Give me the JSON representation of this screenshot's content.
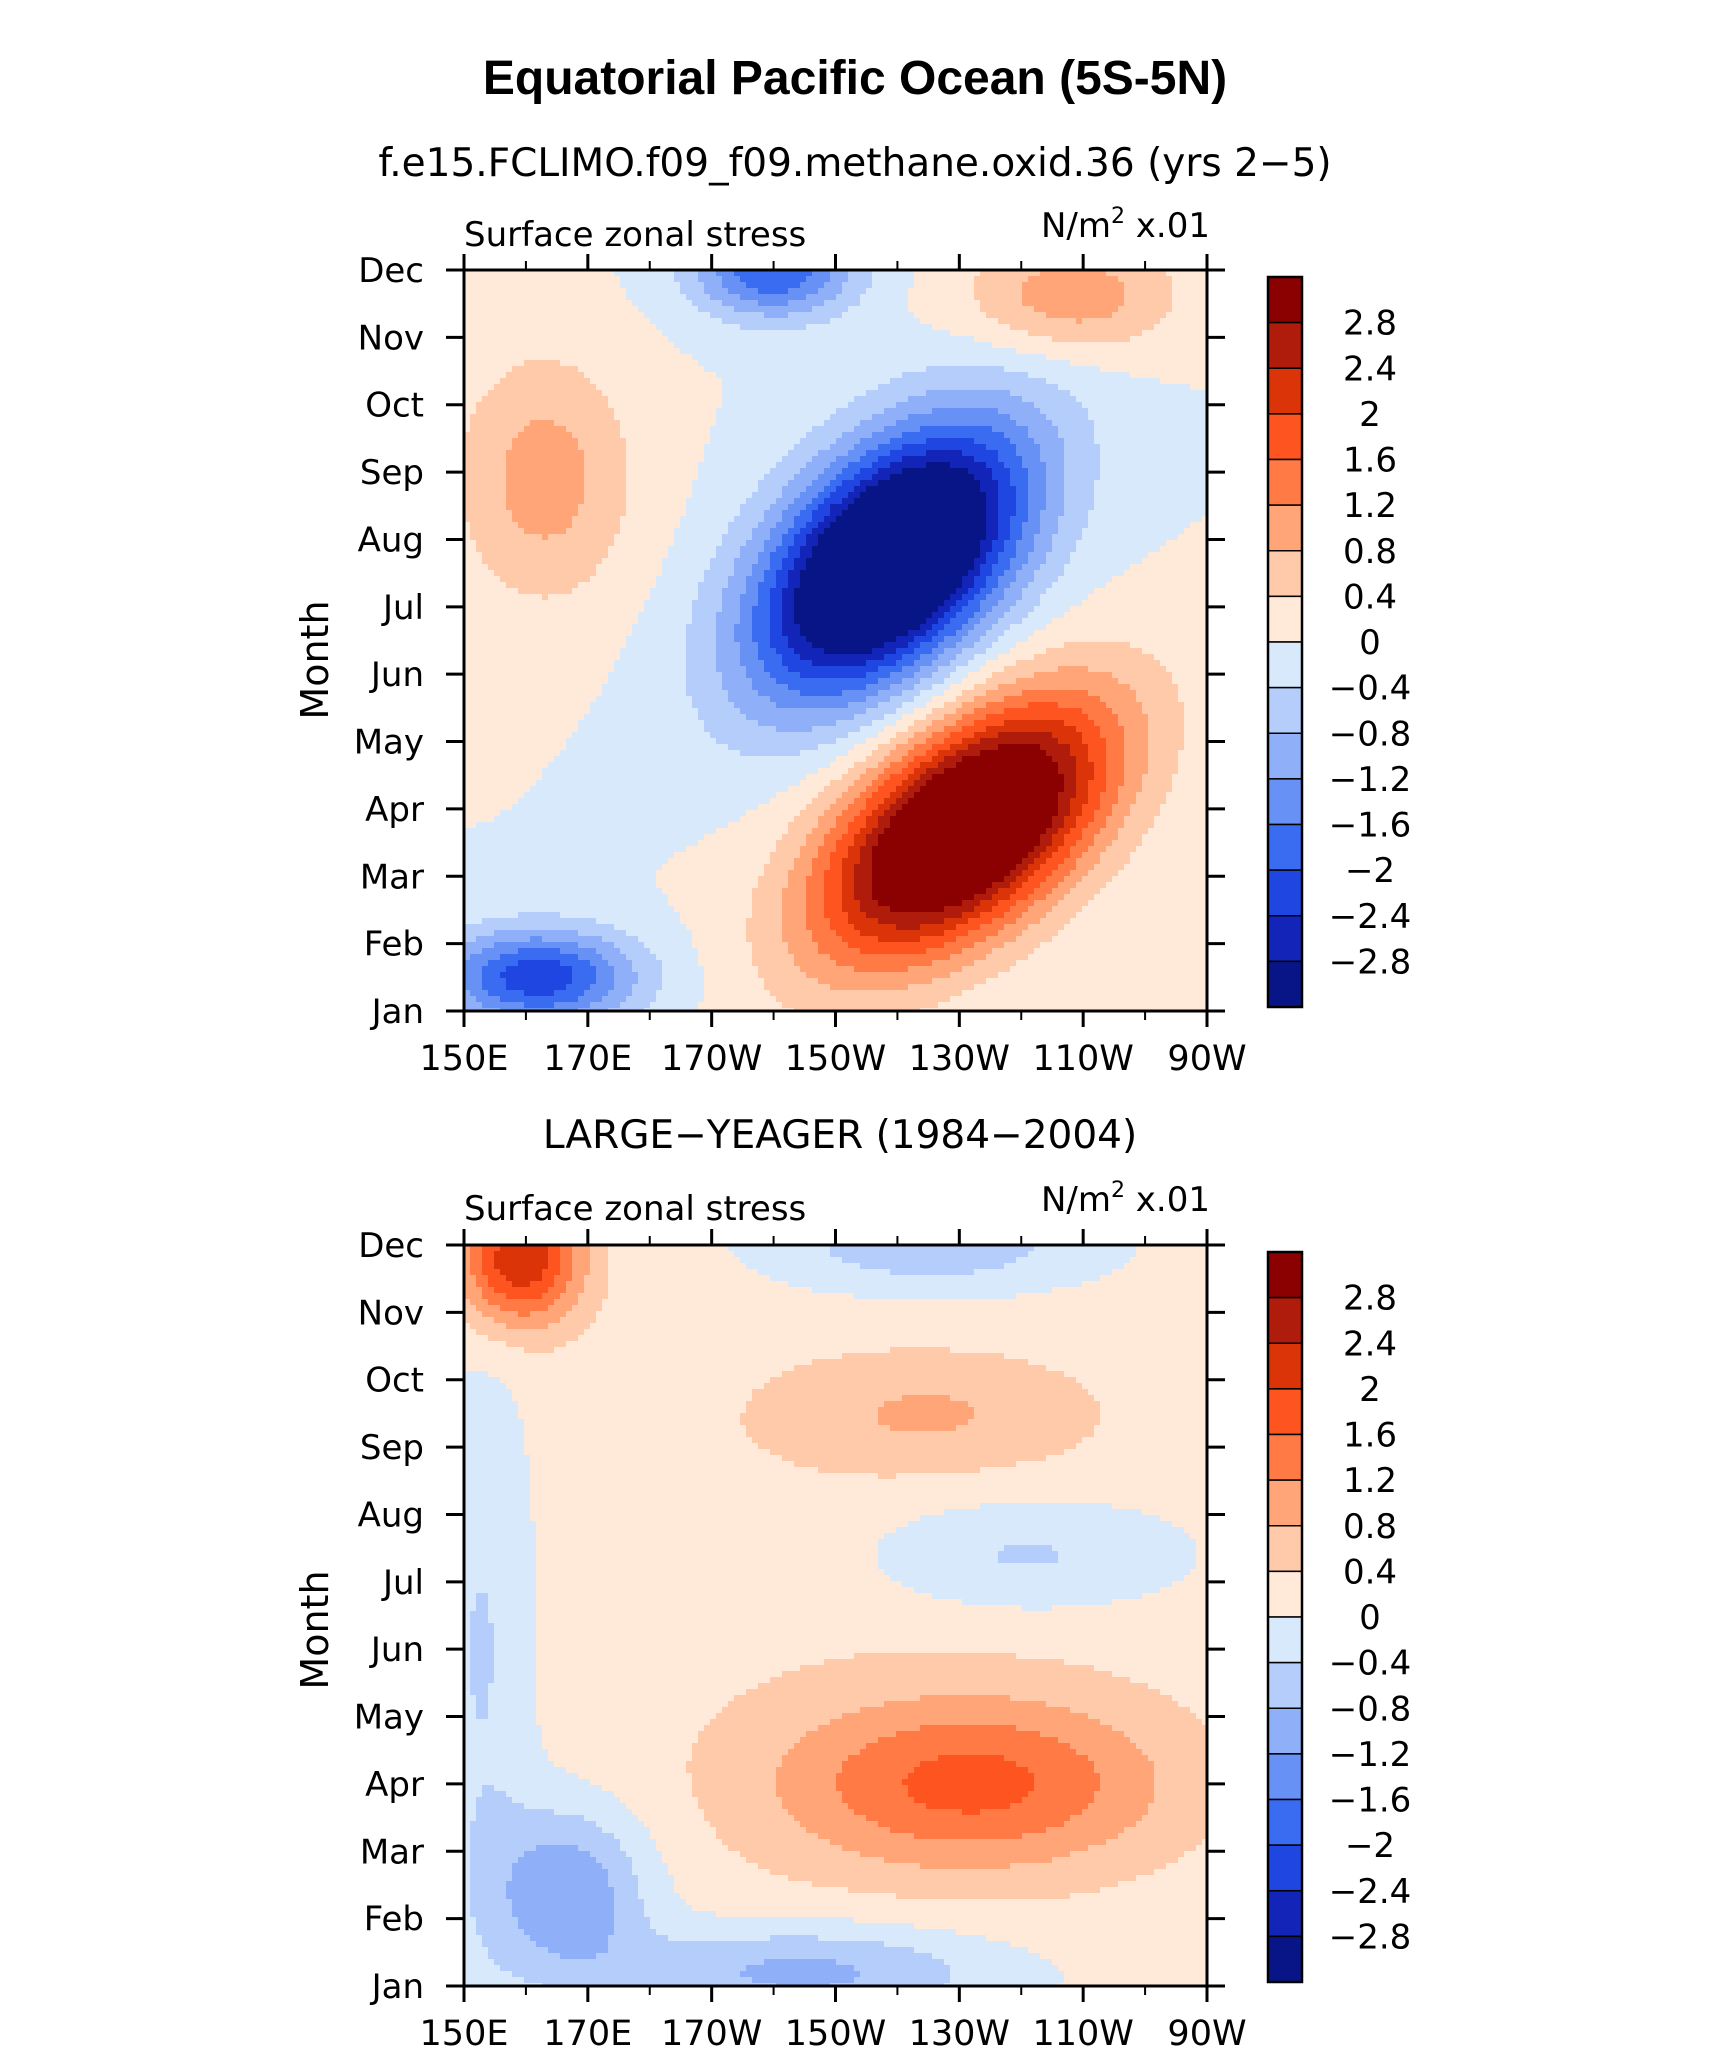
{
  "figure": {
    "title": "Equatorial Pacific Ocean (5S-5N)"
  },
  "colorbar": {
    "labels": [
      "2.8",
      "2.4",
      "2",
      "1.6",
      "1.2",
      "0.8",
      "0.4",
      "0",
      "−0.4",
      "−0.8",
      "−1.2",
      "−1.6",
      "−2",
      "−2.4",
      "−2.8"
    ],
    "colors": [
      "#8b0000",
      "#b01c0c",
      "#dc3409",
      "#fe5420",
      "#ff7a45",
      "#ffa577",
      "#ffcaa9",
      "#ffe9d9",
      "#d8e9fc",
      "#b5cdfb",
      "#8fb0f8",
      "#6891f6",
      "#3a6cf2",
      "#1f46e0",
      "#1225b8",
      "#081586"
    ]
  },
  "chart_data": [
    {
      "type": "heatmap",
      "title": "f.e15.FCLIMO.f09_f09.methane.oxid.36 (yrs 2−5)",
      "left_label": "Surface zonal stress",
      "right_label_main": "N/m",
      "right_label_sup": "2",
      "right_label_tail": " x.01",
      "ylabel": "Month",
      "x_ticks": [
        "150E",
        "170E",
        "170W",
        "150W",
        "130W",
        "110W",
        "90W"
      ],
      "y_ticks": [
        "Jan",
        "Feb",
        "Mar",
        "Apr",
        "May",
        "Jun",
        "Jul",
        "Aug",
        "Sep",
        "Oct",
        "Nov",
        "Dec"
      ],
      "xlim": [
        150,
        270
      ],
      "ylim": [
        1,
        12
      ],
      "contour_levels": [
        -2.8,
        -2.4,
        -2.0,
        -1.6,
        -1.2,
        -0.8,
        -0.4,
        0,
        0.4,
        0.8,
        1.2,
        1.6,
        2.0,
        2.4,
        2.8
      ],
      "units": "N/m2 x.01",
      "features": [
        {
          "amp": 4.5,
          "x": 231,
          "y": 3.7,
          "sx": 16,
          "sy": 1.1,
          "rot": -0.44
        },
        {
          "amp": -4.8,
          "x": 219,
          "y": 7.7,
          "sx": 15,
          "sy": 1.2,
          "rot": -0.44
        },
        {
          "amp": -2.3,
          "x": 162,
          "y": 1.5,
          "sx": 11,
          "sy": 0.5,
          "rot": 0
        },
        {
          "amp": 1.0,
          "x": 163,
          "y": 8.9,
          "sx": 10,
          "sy": 1.3,
          "rot": 0
        },
        {
          "amp": 1.1,
          "x": 248,
          "y": 11.6,
          "sx": 12,
          "sy": 0.6,
          "rot": 0
        },
        {
          "amp": -2.0,
          "x": 200,
          "y": 12.0,
          "sx": 9,
          "sy": 0.5,
          "rot": 0
        }
      ]
    },
    {
      "type": "heatmap",
      "title": "LARGE−YEAGER (1984−2004)",
      "left_label": "Surface zonal stress",
      "right_label_main": "N/m",
      "right_label_sup": "2",
      "right_label_tail": " x.01",
      "ylabel": "Month",
      "x_ticks": [
        "150E",
        "170E",
        "170W",
        "150W",
        "130W",
        "110W",
        "90W"
      ],
      "y_ticks": [
        "Jan",
        "Feb",
        "Mar",
        "Apr",
        "May",
        "Jun",
        "Jul",
        "Aug",
        "Sep",
        "Oct",
        "Nov",
        "Dec"
      ],
      "xlim": [
        150,
        270
      ],
      "ylim": [
        1,
        12
      ],
      "contour_levels": [
        -2.8,
        -2.4,
        -2.0,
        -1.6,
        -1.2,
        -0.8,
        -0.4,
        0,
        0.4,
        0.8,
        1.2,
        1.6,
        2.0,
        2.4,
        2.8
      ],
      "units": "N/m2 x.01",
      "features": [
        {
          "amp": 0.3,
          "x": 215,
          "y": 6.5,
          "sx": 60,
          "sy": 6,
          "rot": 0
        },
        {
          "amp": 1.5,
          "x": 232,
          "y": 4.0,
          "sx": 22,
          "sy": 0.9,
          "rot": 0
        },
        {
          "amp": 0.6,
          "x": 225,
          "y": 9.5,
          "sx": 18,
          "sy": 0.6,
          "rot": 0
        },
        {
          "amp": 2.3,
          "x": 159,
          "y": 11.8,
          "sx": 7,
          "sy": 0.7,
          "rot": 0
        },
        {
          "amp": -1.3,
          "x": 167,
          "y": 2.4,
          "sx": 9,
          "sy": 0.9,
          "rot": 0
        },
        {
          "amp": -1.1,
          "x": 205,
          "y": 1.2,
          "sx": 22,
          "sy": 0.5,
          "rot": 0
        },
        {
          "amp": -0.7,
          "x": 240,
          "y": 7.4,
          "sx": 18,
          "sy": 0.6,
          "rot": 0
        },
        {
          "amp": -0.9,
          "x": 225,
          "y": 12.0,
          "sx": 18,
          "sy": 0.5,
          "rot": 0
        },
        {
          "amp": -0.6,
          "x": 153,
          "y": 6.0,
          "sx": 6,
          "sy": 3,
          "rot": 0
        }
      ]
    }
  ]
}
